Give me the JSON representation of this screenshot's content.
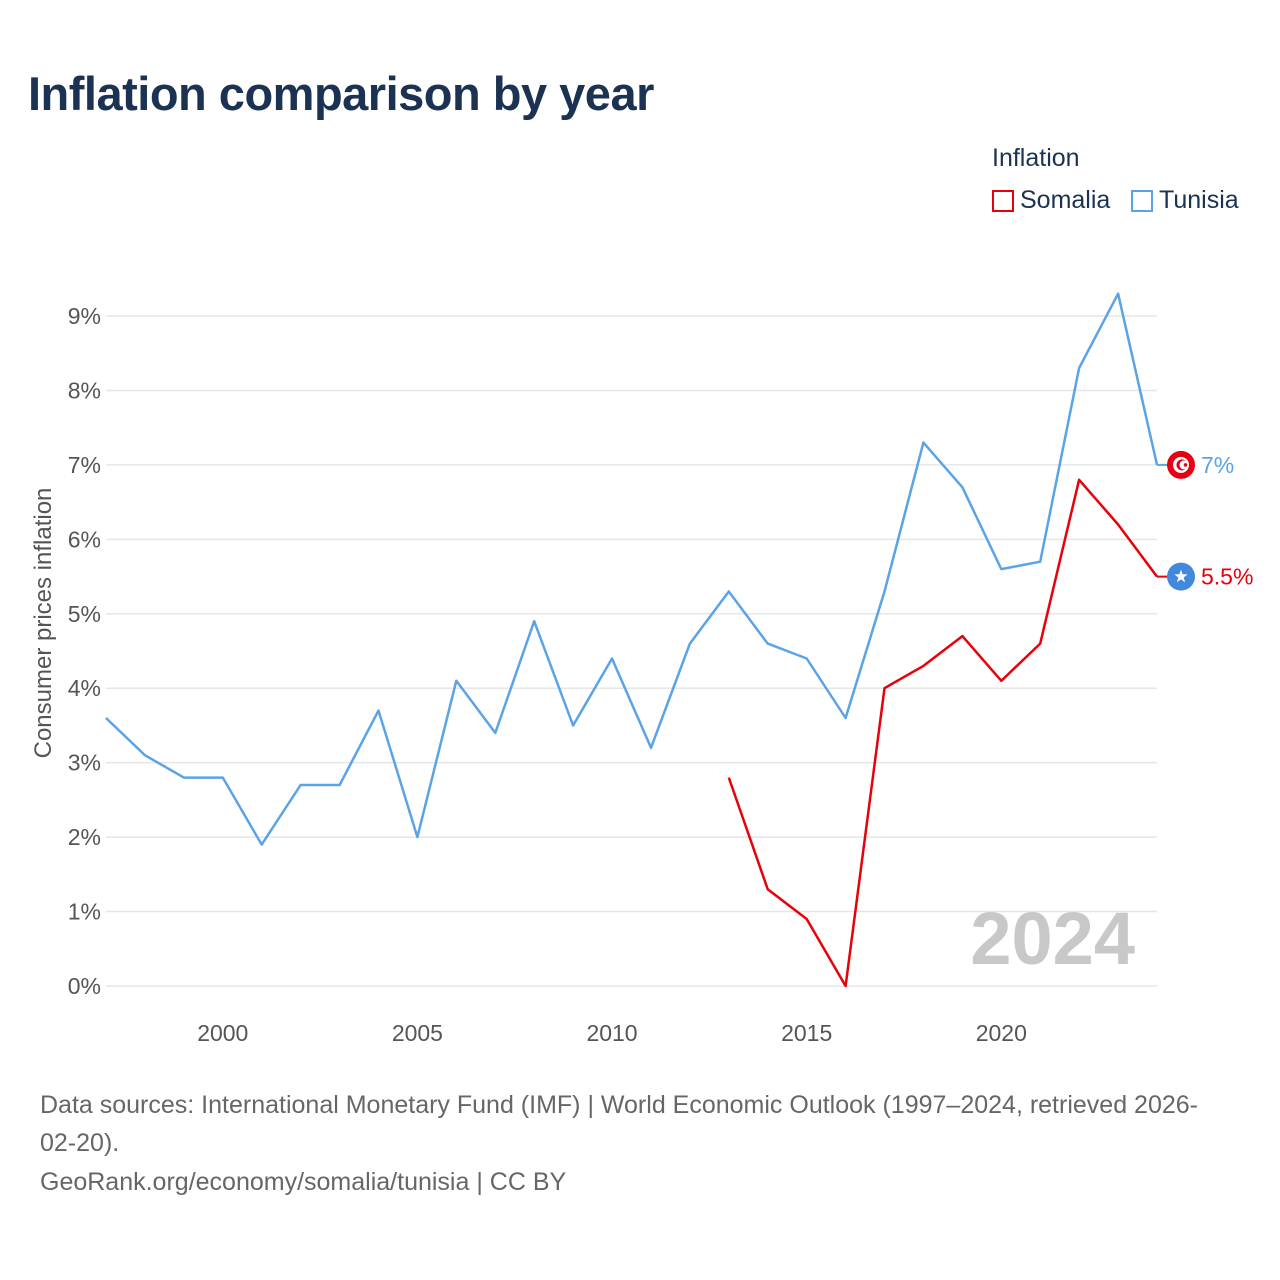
{
  "title": "Inflation comparison by year",
  "legend": {
    "title": "Inflation",
    "items": [
      {
        "label": "Somalia",
        "color": "#e8000b"
      },
      {
        "label": "Tunisia",
        "color": "#5aa3e6"
      }
    ]
  },
  "footer": {
    "line1": "Data sources: International Monetary Fund (IMF) | World Economic Outlook (1997–2024, retrieved 2026-",
    "line2": "02-20).",
    "line3": "GeoRank.org/economy/somalia/tunisia | CC BY"
  },
  "chart_data": {
    "type": "line",
    "title": "Inflation comparison by year",
    "xlabel": "",
    "ylabel": "Consumer prices inflation",
    "xlim": [
      1997,
      2024
    ],
    "ylim": [
      0,
      9.4
    ],
    "x_ticks": [
      2000,
      2005,
      2010,
      2015,
      2020
    ],
    "y_ticks": [
      0,
      1,
      2,
      3,
      4,
      5,
      6,
      7,
      8,
      9
    ],
    "y_tick_labels": [
      "0%",
      "1%",
      "2%",
      "3%",
      "4%",
      "5%",
      "6%",
      "7%",
      "8%",
      "9%"
    ],
    "watermark": "2024",
    "series": [
      {
        "name": "Tunisia",
        "color": "#5aa3e6",
        "end_label": "7%",
        "icon": "tunisia-flag-icon",
        "x": [
          1997,
          1998,
          1999,
          2000,
          2001,
          2002,
          2003,
          2004,
          2005,
          2006,
          2007,
          2008,
          2009,
          2010,
          2011,
          2012,
          2013,
          2014,
          2015,
          2016,
          2017,
          2018,
          2019,
          2020,
          2021,
          2022,
          2023,
          2024
        ],
        "values": [
          3.6,
          3.1,
          2.8,
          2.8,
          1.9,
          2.7,
          2.7,
          3.7,
          2.0,
          4.1,
          3.4,
          4.9,
          3.5,
          4.4,
          3.2,
          4.6,
          5.3,
          4.6,
          4.4,
          3.6,
          5.3,
          7.3,
          6.7,
          5.6,
          5.7,
          8.3,
          9.3,
          7.0
        ]
      },
      {
        "name": "Somalia",
        "color": "#e8000b",
        "end_label": "5.5%",
        "icon": "somalia-flag-icon",
        "x": [
          2013,
          2014,
          2015,
          2016,
          2017,
          2018,
          2019,
          2020,
          2021,
          2022,
          2023,
          2024
        ],
        "values": [
          2.8,
          1.3,
          0.9,
          0.0,
          4.0,
          4.3,
          4.7,
          4.1,
          4.6,
          6.8,
          6.2,
          5.5
        ]
      }
    ]
  }
}
